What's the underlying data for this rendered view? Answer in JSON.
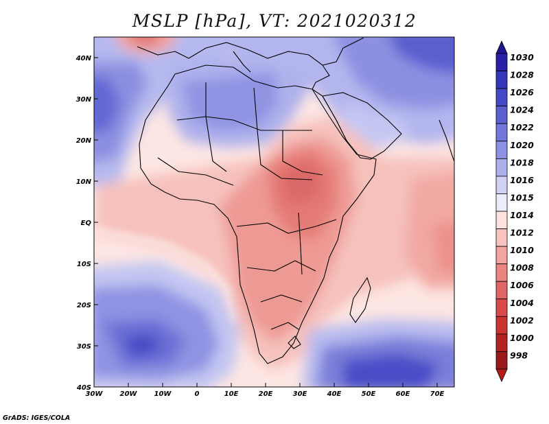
{
  "title": "MSLP [hPa], VT: 2021020312",
  "credit": "GrADS: IGES/COLA",
  "axes": {
    "lon_ticks": [
      "30W",
      "20W",
      "10W",
      "0",
      "10E",
      "20E",
      "30E",
      "40E",
      "50E",
      "60E",
      "70E"
    ],
    "lat_ticks": [
      "40N",
      "30N",
      "20N",
      "10N",
      "EQ",
      "10S",
      "20S",
      "30S",
      "40S"
    ]
  },
  "colorbar": {
    "labels": [
      "1030",
      "1028",
      "1026",
      "1024",
      "1022",
      "1020",
      "1018",
      "1016",
      "1015",
      "1014",
      "1012",
      "1010",
      "1008",
      "1006",
      "1004",
      "1002",
      "1000",
      "998"
    ],
    "colors": [
      "#2a1fa8",
      "#3536b8",
      "#4548c4",
      "#5b5fd0",
      "#7377d9",
      "#8f92e2",
      "#aeb0ec",
      "#cfd1f5",
      "#ecedfb",
      "#fde2e0",
      "#f8c3be",
      "#f2a49f",
      "#ea857f",
      "#e06666",
      "#d94a4a",
      "#cc3434",
      "#b52222",
      "#9a1a1a"
    ],
    "top_arrow_color": "#1f1590",
    "bottom_arrow_color": "#b71c1c"
  }
}
